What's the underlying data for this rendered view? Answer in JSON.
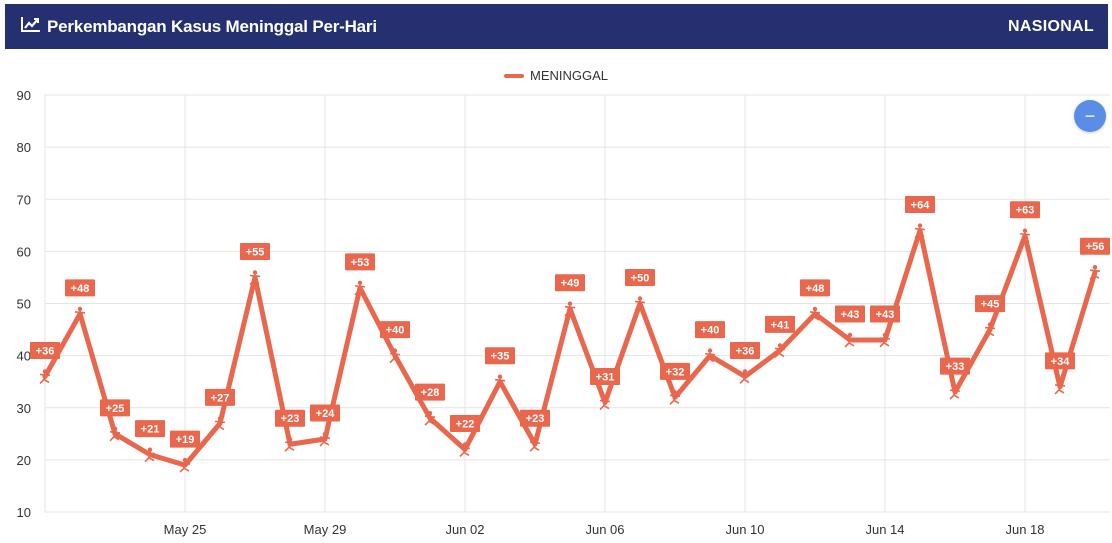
{
  "header": {
    "title": "Perkembangan Kasus Meninggal Per-Hari",
    "scope": "NASIONAL",
    "icon": "trend-line-icon"
  },
  "zoom_button": {
    "icon": "minus-icon",
    "symbol": "−"
  },
  "colors": {
    "header_bg": "#24306f",
    "series": "#e8674d",
    "grid": "#e4e4e4",
    "zoom": "#5b8de6"
  },
  "chart_data": {
    "type": "line",
    "title": "Perkembangan Kasus Meninggal Per-Hari",
    "xlabel": "",
    "ylabel": "",
    "ylim": [
      10,
      90
    ],
    "y_ticks": [
      10,
      20,
      30,
      40,
      50,
      60,
      70,
      80,
      90
    ],
    "x_ticks": [
      "May 25",
      "May 29",
      "Jun 02",
      "Jun 06",
      "Jun 10",
      "Jun 14",
      "Jun 18"
    ],
    "x": [
      "May 21",
      "May 22",
      "May 23",
      "May 24",
      "May 25",
      "May 26",
      "May 27",
      "May 28",
      "May 29",
      "May 30",
      "May 31",
      "Jun 01",
      "Jun 02",
      "Jun 03",
      "Jun 04",
      "Jun 05",
      "Jun 06",
      "Jun 07",
      "Jun 08",
      "Jun 09",
      "Jun 10",
      "Jun 11",
      "Jun 12",
      "Jun 13",
      "Jun 14",
      "Jun 15",
      "Jun 16",
      "Jun 17",
      "Jun 18",
      "Jun 19",
      "Jun 20"
    ],
    "grid": true,
    "legend_position": "top-center",
    "series": [
      {
        "name": "MENINGGAL",
        "color": "#e8674d",
        "values": [
          36,
          48,
          25,
          21,
          19,
          27,
          55,
          23,
          24,
          53,
          40,
          28,
          22,
          35,
          23,
          49,
          31,
          50,
          32,
          40,
          36,
          41,
          48,
          43,
          43,
          64,
          33,
          45,
          63,
          34,
          56
        ],
        "labels": [
          "+36",
          "+48",
          "+25",
          "+21",
          "+19",
          "+27",
          "+55",
          "+23",
          "+24",
          "+53",
          "+40",
          "+28",
          "+22",
          "+35",
          "+23",
          "+49",
          "+31",
          "+50",
          "+32",
          "+40",
          "+36",
          "+41",
          "+48",
          "+43",
          "+43",
          "+64",
          "+33",
          "+45",
          "+63",
          "+34",
          "+56"
        ]
      }
    ]
  }
}
